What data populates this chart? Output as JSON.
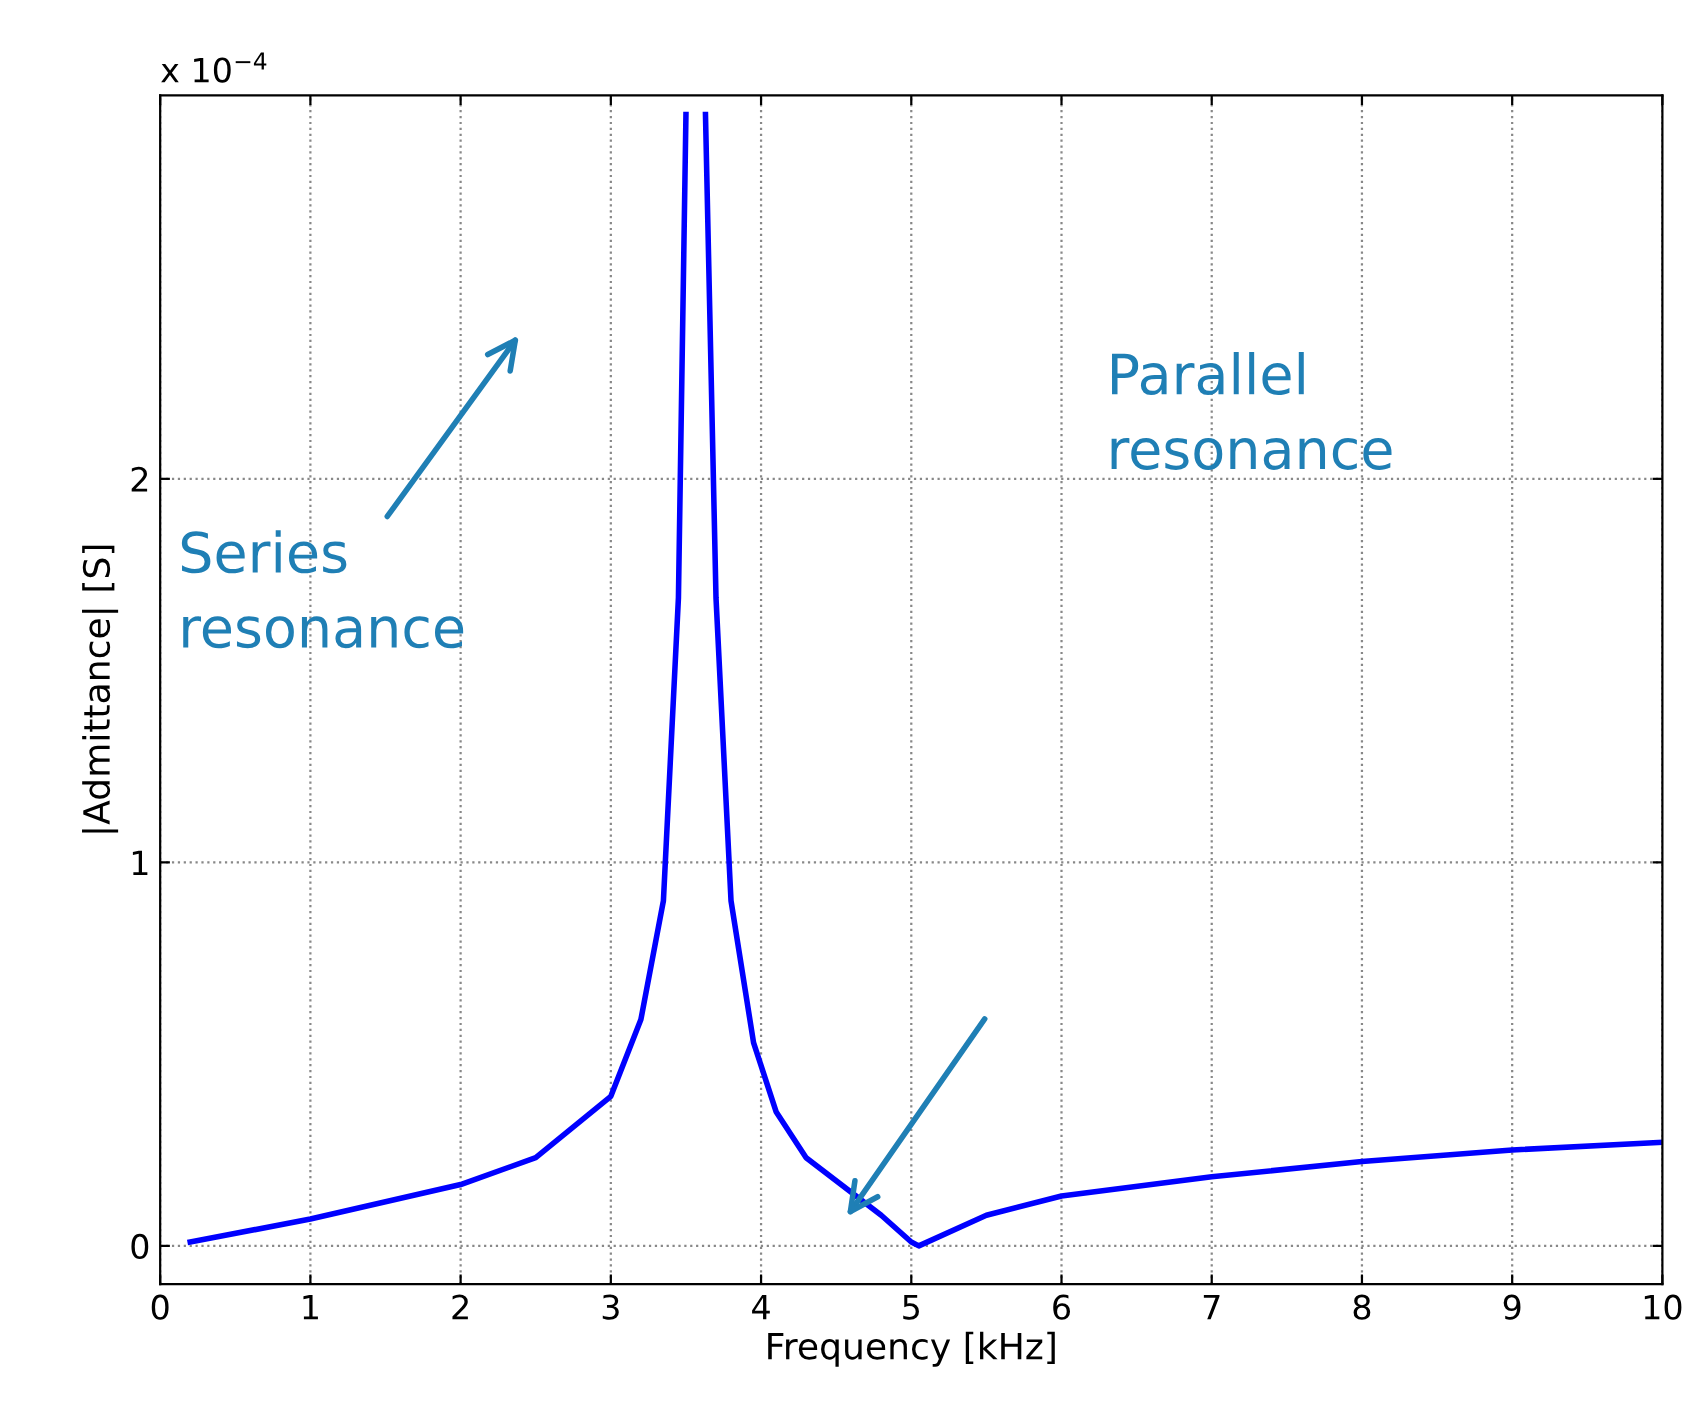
{
  "chart_data": {
    "type": "line",
    "xlabel": "Frequency [kHz]",
    "ylabel": "|Admittance| [S]",
    "x": [
      0.2,
      1,
      2,
      2.5,
      3,
      3.2,
      3.35,
      3.45,
      3.5,
      3.57,
      3.63,
      3.7,
      3.8,
      3.95,
      4.1,
      4.3,
      4.6,
      4.8,
      5.0,
      5.05,
      5.5,
      6,
      7,
      8,
      9,
      10
    ],
    "series": [
      {
        "color": "#0000ff",
        "values": [
          0.01,
          0.07,
          0.16,
          0.23,
          0.39,
          0.59,
          0.9,
          1.69,
          2.95,
          null,
          2.95,
          1.69,
          0.9,
          0.53,
          0.35,
          0.23,
          0.14,
          0.08,
          0.01,
          0.0,
          0.08,
          0.13,
          0.18,
          0.22,
          0.25,
          0.27
        ]
      }
    ],
    "xlim": [
      0,
      10
    ],
    "ylim": [
      -0.1,
      3
    ],
    "xticks": [
      0,
      1,
      2,
      3,
      4,
      5,
      6,
      7,
      8,
      9,
      10
    ],
    "yticks": [
      0,
      1,
      2
    ],
    "grid": true,
    "line_style": "solid",
    "marker": "none",
    "annotations": [
      "x 10$^{−4}$",
      "Series\nresonance",
      "Parallel\nresonance"
    ]
  }
}
